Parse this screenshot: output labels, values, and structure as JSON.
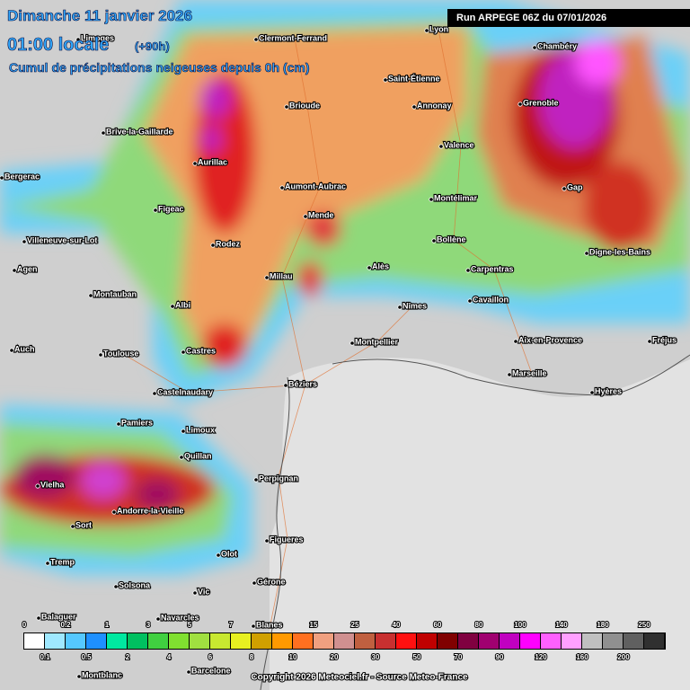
{
  "header": {
    "date": "Dimanche 11 janvier 2026",
    "time": "01:00 locale",
    "lead": "(+90h)",
    "subtitle": "Cumul de précipitations neigeuses depuis 0h (cm)",
    "run": "Run ARPEGE 06Z du 07/01/2026"
  },
  "cities": [
    "Limoges",
    "Clermont-Ferrand",
    "Lyon",
    "Chambéry",
    "Saint-Étienne",
    "Brioude",
    "Annonay",
    "Grenoble",
    "Brive-la-Gaillarde",
    "Aurillac",
    "Valence",
    "Bergerac",
    "Aumont-Aubrac",
    "Gap",
    "Figeac",
    "Mende",
    "Montélimar",
    "Villeneuve-sur-Lot",
    "Rodez",
    "Bollène",
    "Digne-les-Bains",
    "Agen",
    "Millau",
    "Alès",
    "Carpentras",
    "Montauban",
    "Albi",
    "Nîmes",
    "Cavaillon",
    "Auch",
    "Toulouse",
    "Castres",
    "Montpellier",
    "Aix-en-Provence",
    "Fréjus",
    "Castelnaudary",
    "Béziers",
    "Marseille",
    "Hyères",
    "Pamiers",
    "Limoux",
    "Quillan",
    "Perpignan",
    "Vielha",
    "Andorre-la-Vieille",
    "Sort",
    "Figueres",
    "Tremp",
    "Olot",
    "Solsona",
    "Vic",
    "Gérone",
    "Balaguer",
    "Navarcles",
    "Blanes",
    "Barcelone",
    "Montblanc"
  ],
  "legend": [
    "0",
    "0.1",
    "0.2",
    "0.5",
    "1",
    "2",
    "3",
    "4",
    "5",
    "6",
    "7",
    "8",
    "10",
    "15",
    "20",
    "25",
    "30",
    "40",
    "50",
    "60",
    "70",
    "80",
    "90",
    "100",
    "120",
    "140",
    "160",
    "180",
    "200",
    "250"
  ],
  "footer": "Copyright 2026 Meteociel.fr - Source Meteo-France"
}
